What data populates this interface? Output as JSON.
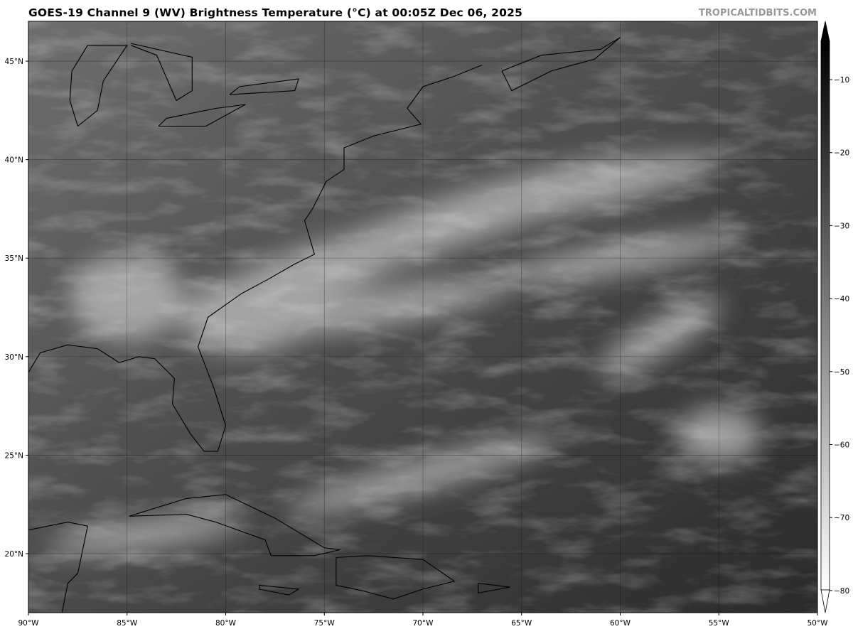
{
  "title": "GOES-19 Channel 9 (WV) Brightness Temperature (°C) at 00:05Z Dec 06, 2025",
  "credit": "TROPICALTIDBITS.COM",
  "map": {
    "type": "satellite-water-vapor-imagery",
    "colormap": "grayscale (dark = warm, light = cold)",
    "lon_range": [
      -90,
      -50
    ],
    "lat_range": [
      17,
      47
    ],
    "gridlines": true,
    "lon_ticks": [
      "90°W",
      "85°W",
      "80°W",
      "75°W",
      "70°W",
      "65°W",
      "60°W",
      "55°W",
      "50°W"
    ],
    "lat_ticks": [
      "45°N",
      "40°N",
      "35°N",
      "30°N",
      "25°N",
      "20°N"
    ]
  },
  "colorbar": {
    "range": [
      -82,
      -3
    ],
    "ticks": [
      "−10",
      "−20",
      "−30",
      "−40",
      "−50",
      "−60",
      "−70",
      "−80"
    ],
    "extend": "both",
    "colors": {
      "warm": "#000000",
      "cold": "#ffffff"
    }
  }
}
